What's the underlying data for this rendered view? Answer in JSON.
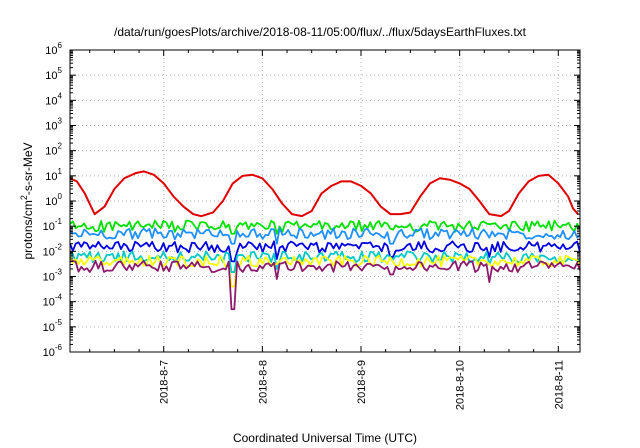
{
  "chart_data": {
    "type": "line",
    "title": "/data/run/goesPlots/archive/2018-08-11/05:00/flux/../flux/5daysEarthFluxes.txt",
    "xlabel": "Coordinated Universal Time (UTC)",
    "ylabel": {
      "prefix": "protons/cm",
      "superscript": "2",
      "suffix": "-s-sr-MeV"
    },
    "x_unit": "day of August 2018",
    "x_range": [
      6.05,
      11.22
    ],
    "x_ticks": [
      {
        "value": 7,
        "label": "2018-8-7"
      },
      {
        "value": 8,
        "label": "2018-8-8"
      },
      {
        "value": 9,
        "label": "2018-8-9"
      },
      {
        "value": 10,
        "label": "2018-8-10"
      },
      {
        "value": 11,
        "label": "2018-8-11"
      }
    ],
    "y_scale": "log",
    "y_range": [
      1e-06,
      1000000.0
    ],
    "y_ticks": [
      {
        "value": 1e-06,
        "base": "10",
        "exp": "-6"
      },
      {
        "value": 1e-05,
        "base": "10",
        "exp": "-5"
      },
      {
        "value": 0.0001,
        "base": "10",
        "exp": "-4"
      },
      {
        "value": 0.001,
        "base": "10",
        "exp": "-3"
      },
      {
        "value": 0.01,
        "base": "10",
        "exp": "-2"
      },
      {
        "value": 0.1,
        "base": "10",
        "exp": "-1"
      },
      {
        "value": 1.0,
        "base": "10",
        "exp": "0"
      },
      {
        "value": 10.0,
        "base": "10",
        "exp": "1"
      },
      {
        "value": 100.0,
        "base": "10",
        "exp": "2"
      },
      {
        "value": 1000.0,
        "base": "10",
        "exp": "3"
      },
      {
        "value": 10000.0,
        "base": "10",
        "exp": "4"
      },
      {
        "value": 100000.0,
        "base": "10",
        "exp": "5"
      },
      {
        "value": 1000000.0,
        "base": "10",
        "exp": "6"
      }
    ],
    "grid": true,
    "legend": "none",
    "series": [
      {
        "color": "#e00000",
        "points": [
          [
            6.05,
            8.0
          ],
          [
            6.12,
            6.0
          ],
          [
            6.2,
            2.0
          ],
          [
            6.3,
            0.3
          ],
          [
            6.4,
            0.6
          ],
          [
            6.5,
            3.0
          ],
          [
            6.6,
            8.0
          ],
          [
            6.72,
            13.0
          ],
          [
            6.8,
            15.0
          ],
          [
            6.9,
            11.0
          ],
          [
            7.0,
            5.0
          ],
          [
            7.1,
            1.5
          ],
          [
            7.2,
            0.6
          ],
          [
            7.3,
            0.3
          ],
          [
            7.38,
            0.25
          ],
          [
            7.5,
            0.35
          ],
          [
            7.6,
            1.0
          ],
          [
            7.7,
            5.0
          ],
          [
            7.8,
            10.0
          ],
          [
            7.9,
            11.0
          ],
          [
            8.0,
            8.0
          ],
          [
            8.1,
            3.0
          ],
          [
            8.2,
            0.8
          ],
          [
            8.3,
            0.3
          ],
          [
            8.4,
            0.25
          ],
          [
            8.5,
            0.4
          ],
          [
            8.6,
            2.0
          ],
          [
            8.7,
            4.0
          ],
          [
            8.8,
            6.0
          ],
          [
            8.9,
            6.0
          ],
          [
            9.0,
            4.0
          ],
          [
            9.1,
            2.0
          ],
          [
            9.2,
            0.6
          ],
          [
            9.3,
            0.3
          ],
          [
            9.4,
            0.3
          ],
          [
            9.5,
            0.35
          ],
          [
            9.6,
            1.5
          ],
          [
            9.7,
            5.0
          ],
          [
            9.8,
            8.0
          ],
          [
            9.9,
            7.0
          ],
          [
            10.0,
            5.0
          ],
          [
            10.1,
            3.0
          ],
          [
            10.2,
            1.0
          ],
          [
            10.3,
            0.3
          ],
          [
            10.42,
            0.25
          ],
          [
            10.5,
            0.4
          ],
          [
            10.6,
            2.0
          ],
          [
            10.7,
            6.0
          ],
          [
            10.8,
            10.0
          ],
          [
            10.9,
            11.0
          ],
          [
            11.0,
            5.0
          ],
          [
            11.1,
            1.5
          ],
          [
            11.15,
            0.5
          ],
          [
            11.2,
            0.3
          ]
        ]
      },
      {
        "color": "#00e000",
        "base": 0.1,
        "dips": [
          [
            7.7,
            0.05
          ],
          [
            8.15,
            0.05
          ]
        ]
      },
      {
        "color": "#1e90ff",
        "base": 0.05,
        "dips": [
          [
            7.7,
            0.02
          ],
          [
            8.15,
            0.02
          ],
          [
            9.3,
            0.02
          ]
        ]
      },
      {
        "color": "#0000e0",
        "base": 0.015,
        "dips": [
          [
            7.7,
            0.004
          ],
          [
            8.15,
            0.005
          ],
          [
            9.3,
            0.006
          ],
          [
            10.3,
            0.006
          ]
        ]
      },
      {
        "color": "#00c8c8",
        "base": 0.006,
        "dips": [
          [
            7.7,
            0.0015
          ],
          [
            8.15,
            0.002
          ],
          [
            10.3,
            0.003
          ]
        ]
      },
      {
        "color": "#ffff00",
        "base": 0.004,
        "dips": [
          [
            7.7,
            0.0004
          ]
        ]
      },
      {
        "color": "#8b1a6b",
        "base": 0.0025,
        "dips": [
          [
            6.25,
            0.0015
          ],
          [
            7.7,
            5e-05
          ],
          [
            8.15,
            0.0008
          ],
          [
            9.3,
            0.0012
          ],
          [
            10.3,
            0.0006
          ]
        ]
      }
    ]
  }
}
